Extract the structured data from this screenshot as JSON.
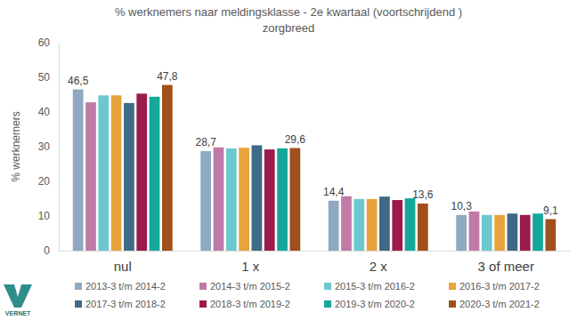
{
  "chart_data": {
    "type": "bar",
    "title": "% werknemers naar meldingsklasse - 2e kwartaal (voortschrijdend )",
    "subtitle": "zorgbreed",
    "y_label": "% werknemers",
    "categories": [
      "nul",
      "1 x",
      "2 x",
      "3 of meer"
    ],
    "series": [
      {
        "name": "2013-3 t/m 2014-2",
        "color": "#8EA9C1",
        "values": [
          46.5,
          28.7,
          14.4,
          10.3
        ],
        "data_labels": true,
        "value_labels": [
          "46,5",
          "28,7",
          "14,4",
          "10,3"
        ]
      },
      {
        "name": "2014-3 t/m 2015-2",
        "color": "#C07AA8",
        "values": [
          42.8,
          29.8,
          15.7,
          11.3
        ]
      },
      {
        "name": "2015-3 t/m 2016-2",
        "color": "#6CC8CF",
        "values": [
          44.8,
          29.5,
          14.9,
          10.3
        ]
      },
      {
        "name": "2016-3 t/m 2017-2",
        "color": "#E8A33D",
        "values": [
          44.8,
          29.7,
          14.9,
          10.3
        ]
      },
      {
        "name": "2017-3 t/m 2018-2",
        "color": "#3E6A85",
        "values": [
          42.6,
          30.4,
          15.6,
          10.7
        ]
      },
      {
        "name": "2018-3 t/m 2019-2",
        "color": "#9B1B4D",
        "values": [
          45.3,
          29.2,
          14.6,
          10.3
        ]
      },
      {
        "name": "2019-3 t/m 2020-2",
        "color": "#14A89A",
        "values": [
          44.4,
          29.5,
          15.1,
          10.7
        ]
      },
      {
        "name": "2020-3 t/m 2021-2",
        "color": "#A0501B",
        "values": [
          47.8,
          29.6,
          13.6,
          9.1
        ],
        "data_labels": true,
        "value_labels": [
          "47,8",
          "29,6",
          "13,6",
          "9,1"
        ]
      }
    ],
    "ylim": [
      0,
      60
    ],
    "yticks": [
      0,
      10,
      20,
      30,
      40,
      50,
      60
    ],
    "grid": false,
    "legend": "bottom",
    "annotations": [
      "VERNET"
    ]
  }
}
